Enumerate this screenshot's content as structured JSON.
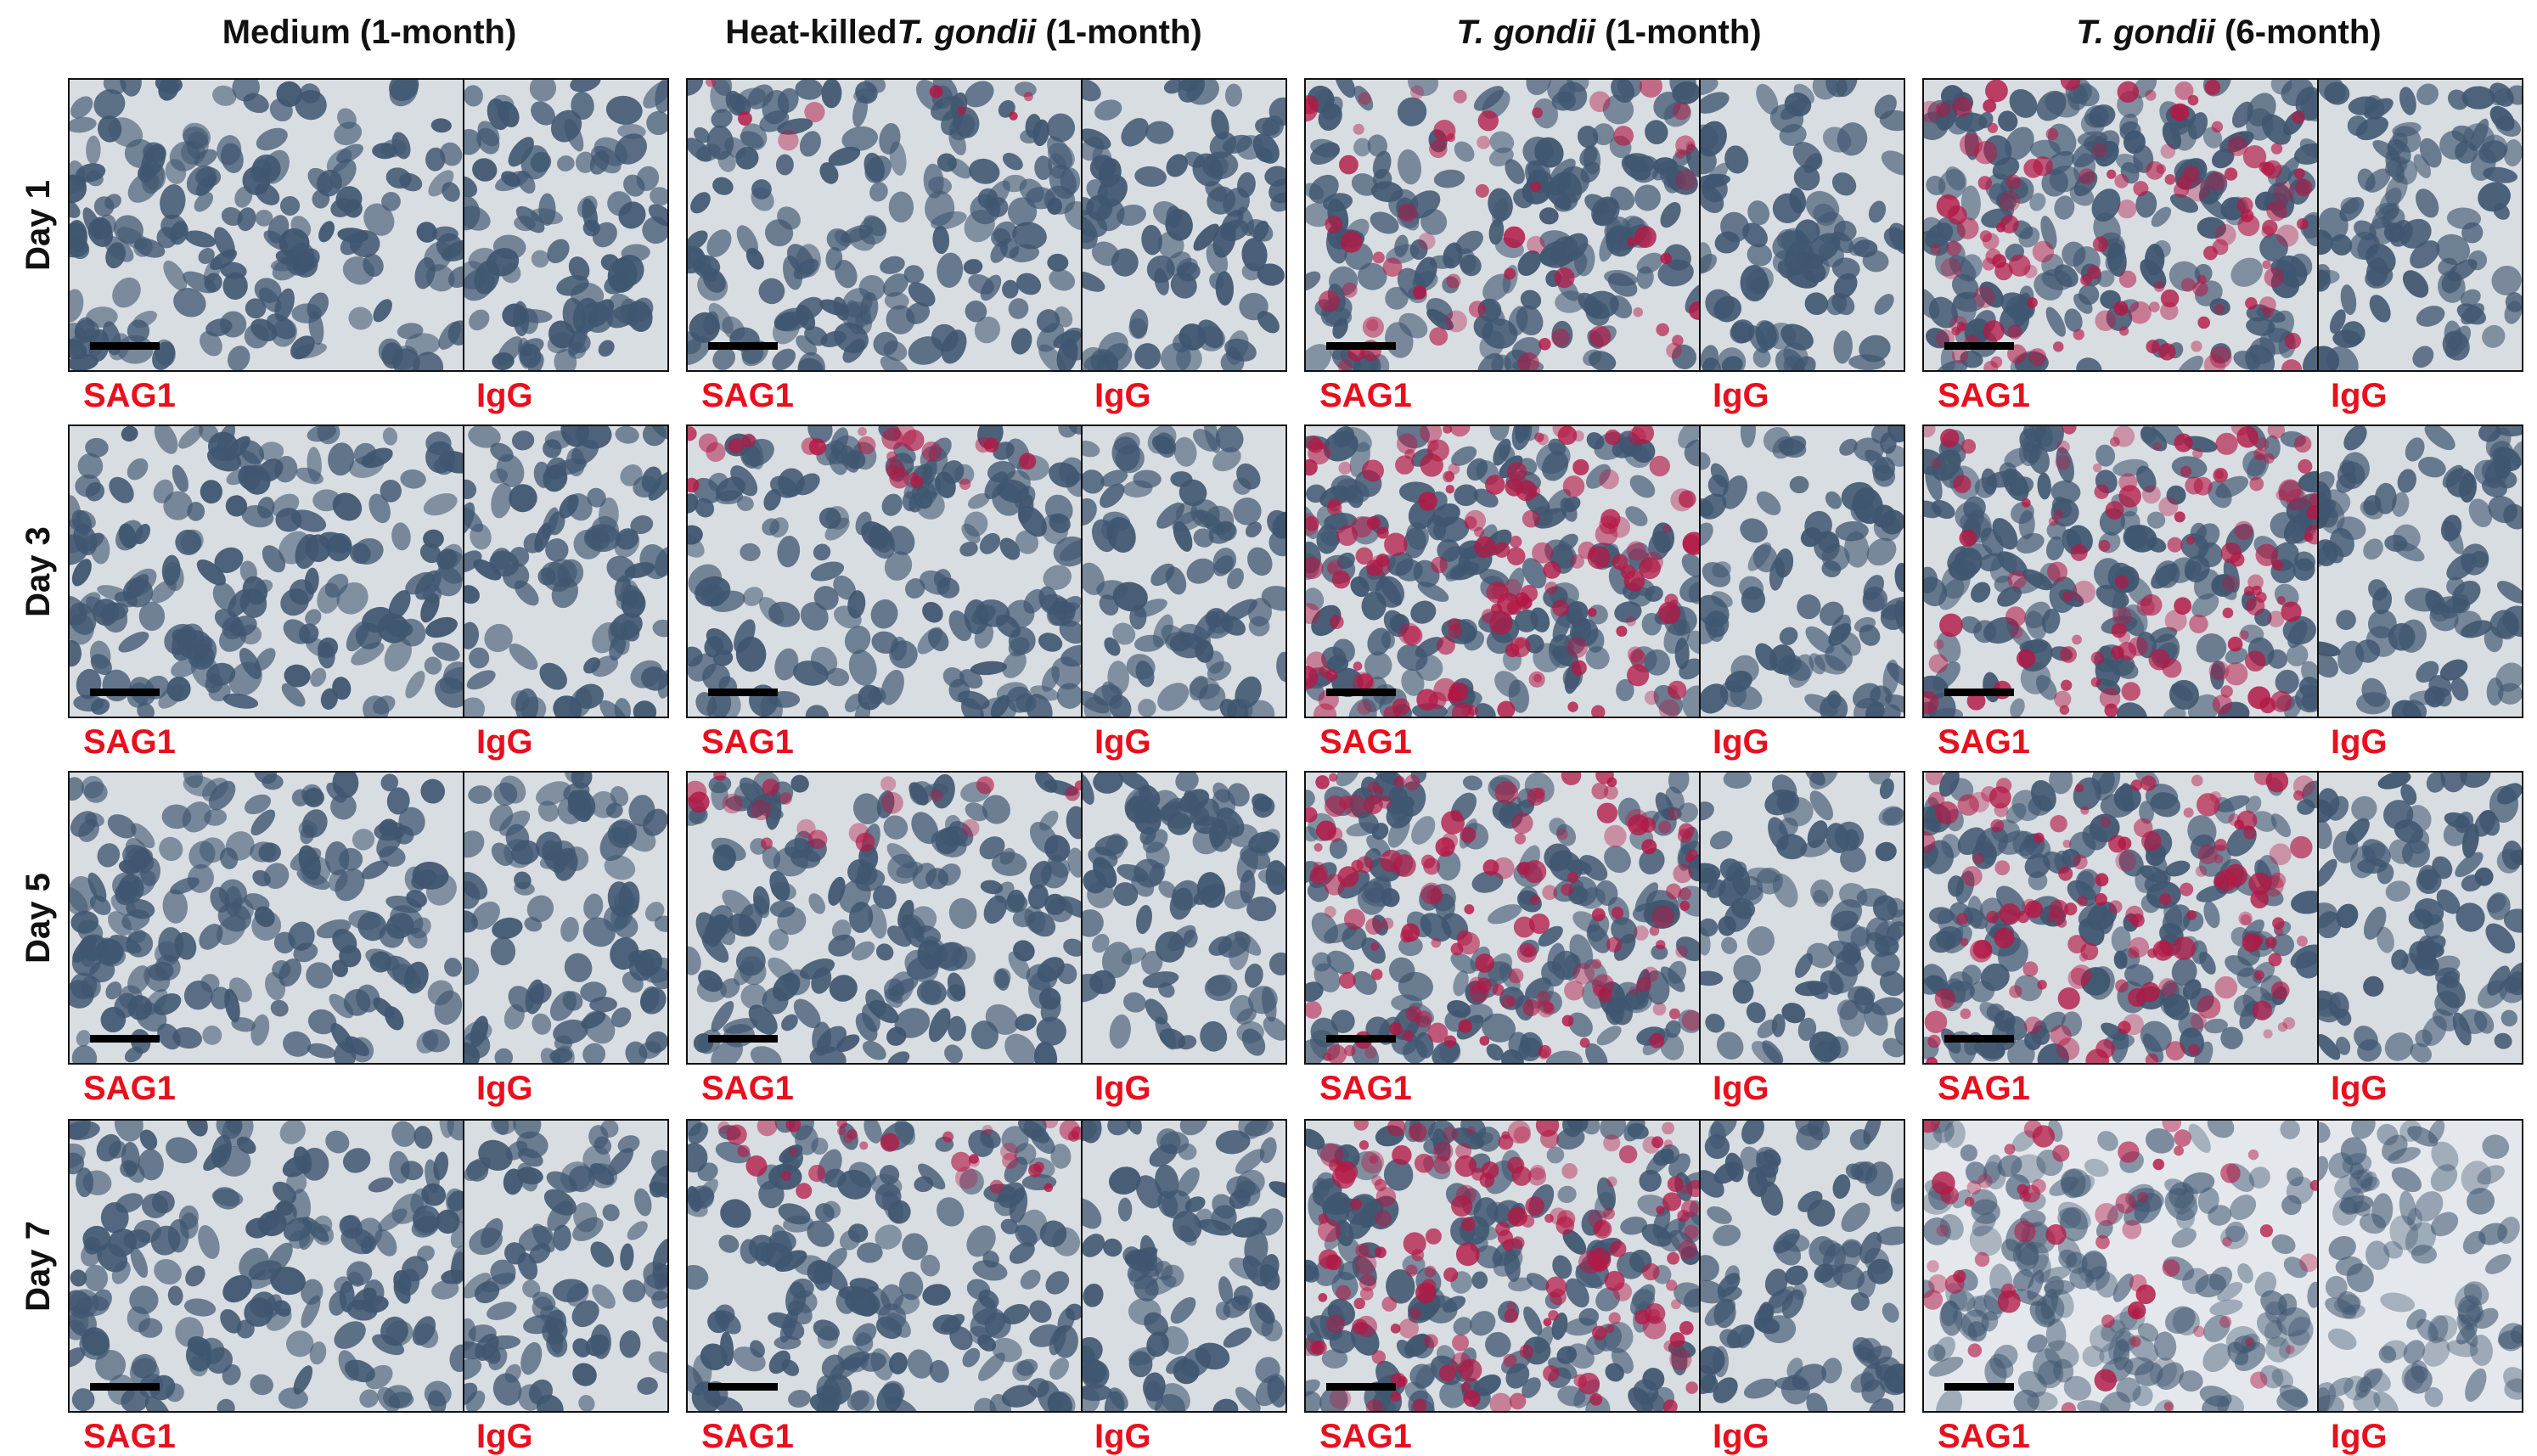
{
  "columns": [
    {
      "pre": "",
      "italic": "",
      "post": "Medium (1-month)"
    },
    {
      "pre": "Heat-killed ",
      "italic": "T. gondii",
      "post": " (1-month)"
    },
    {
      "pre": "",
      "italic": "T. gondii",
      "post": " (1-month)"
    },
    {
      "pre": "",
      "italic": "T. gondii",
      "post": " (6-month)"
    }
  ],
  "rows": [
    {
      "label": "Day 1"
    },
    {
      "label": "Day 3"
    },
    {
      "label": "Day 5"
    },
    {
      "label": "Day 7"
    }
  ],
  "stains": {
    "left": "SAG1",
    "right": "IgG"
  },
  "colors": {
    "nucleus": "#3f5670",
    "background": "#d8dde2",
    "sag1_signal": "#b31845",
    "label_red": "#e8101e"
  },
  "panel_staining": [
    [
      0.0,
      0.05,
      0.35,
      0.75
    ],
    [
      0.0,
      0.15,
      0.9,
      0.7
    ],
    [
      0.0,
      0.12,
      0.85,
      0.8
    ],
    [
      0.0,
      0.2,
      0.95,
      0.35
    ]
  ]
}
